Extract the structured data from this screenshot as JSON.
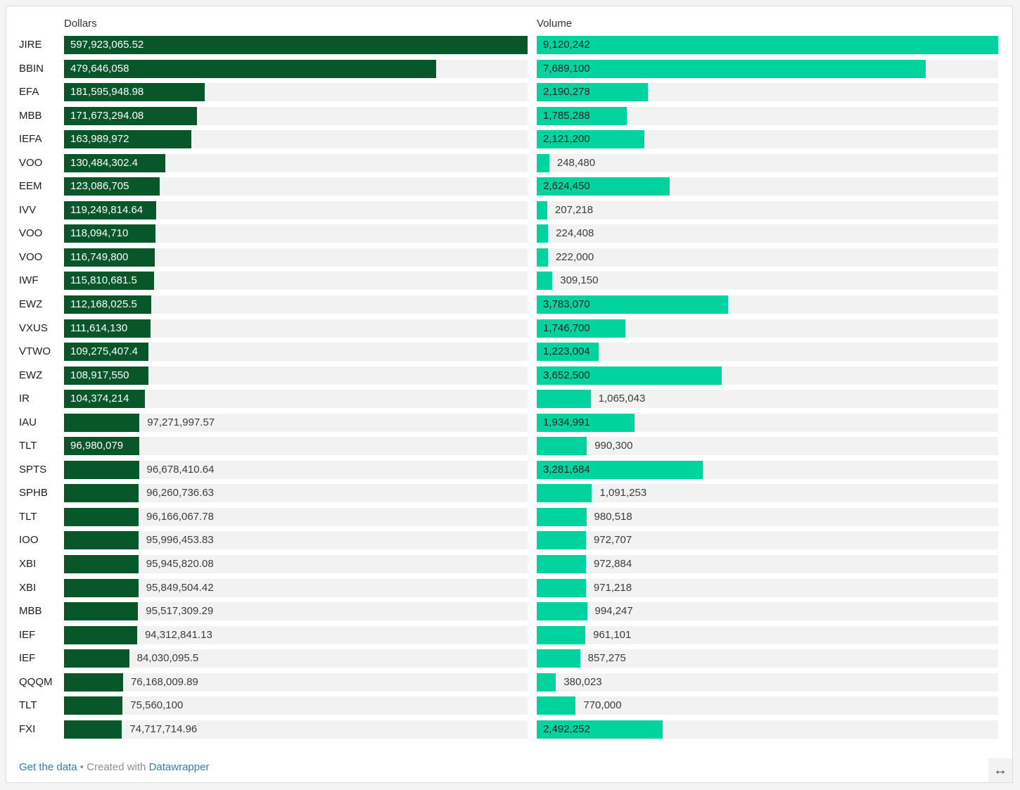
{
  "header": {
    "dollars": "Dollars",
    "volume": "Volume"
  },
  "colors": {
    "dollars_bar": "#08572b",
    "volume_bar": "#00d39e",
    "track": "#f2f2f2",
    "inside_label_on_dark": "#ffffff",
    "inside_label_on_light": "#262626",
    "outside_label": "#3c3c3c",
    "link_blue": "#2e7eb3",
    "footer_gray": "#8f8f8f"
  },
  "chart_data": {
    "type": "bar",
    "layout": "split-bar-columns",
    "columns": [
      "Dollars",
      "Volume"
    ],
    "dollars_axis_max": 597923065.52,
    "volume_axis_max": 9120242,
    "grid": false,
    "rows": [
      {
        "ticker": "JIRE",
        "dollars": 597923065.52,
        "dollars_label": "597,923,065.52",
        "dollars_inside": true,
        "volume": 9120242,
        "volume_label": "9,120,242",
        "volume_inside": true
      },
      {
        "ticker": "BBIN",
        "dollars": 479646058,
        "dollars_label": "479,646,058",
        "dollars_inside": true,
        "volume": 7689100,
        "volume_label": "7,689,100",
        "volume_inside": true
      },
      {
        "ticker": "EFA",
        "dollars": 181595948.98,
        "dollars_label": "181,595,948.98",
        "dollars_inside": true,
        "volume": 2190278,
        "volume_label": "2,190,278",
        "volume_inside": true
      },
      {
        "ticker": "MBB",
        "dollars": 171673294.08,
        "dollars_label": "171,673,294.08",
        "dollars_inside": true,
        "volume": 1785288,
        "volume_label": "1,785,288",
        "volume_inside": true
      },
      {
        "ticker": "IEFA",
        "dollars": 163989972,
        "dollars_label": "163,989,972",
        "dollars_inside": true,
        "volume": 2121200,
        "volume_label": "2,121,200",
        "volume_inside": true
      },
      {
        "ticker": "VOO",
        "dollars": 130484302.4,
        "dollars_label": "130,484,302.4",
        "dollars_inside": true,
        "volume": 248480,
        "volume_label": "248,480",
        "volume_inside": false
      },
      {
        "ticker": "EEM",
        "dollars": 123086705,
        "dollars_label": "123,086,705",
        "dollars_inside": true,
        "volume": 2624450,
        "volume_label": "2,624,450",
        "volume_inside": true
      },
      {
        "ticker": "IVV",
        "dollars": 119249814.64,
        "dollars_label": "119,249,814.64",
        "dollars_inside": true,
        "volume": 207218,
        "volume_label": "207,218",
        "volume_inside": false
      },
      {
        "ticker": "VOO",
        "dollars": 118094710,
        "dollars_label": "118,094,710",
        "dollars_inside": true,
        "volume": 224408,
        "volume_label": "224,408",
        "volume_inside": false
      },
      {
        "ticker": "VOO",
        "dollars": 116749800,
        "dollars_label": "116,749,800",
        "dollars_inside": true,
        "volume": 222000,
        "volume_label": "222,000",
        "volume_inside": false
      },
      {
        "ticker": "IWF",
        "dollars": 115810681.5,
        "dollars_label": "115,810,681.5",
        "dollars_inside": true,
        "volume": 309150,
        "volume_label": "309,150",
        "volume_inside": false
      },
      {
        "ticker": "EWZ",
        "dollars": 112168025.5,
        "dollars_label": "112,168,025.5",
        "dollars_inside": true,
        "volume": 3783070,
        "volume_label": "3,783,070",
        "volume_inside": true
      },
      {
        "ticker": "VXUS",
        "dollars": 111614130,
        "dollars_label": "111,614,130",
        "dollars_inside": true,
        "volume": 1746700,
        "volume_label": "1,746,700",
        "volume_inside": true
      },
      {
        "ticker": "VTWO",
        "dollars": 109275407.4,
        "dollars_label": "109,275,407.4",
        "dollars_inside": true,
        "volume": 1223004,
        "volume_label": "1,223,004",
        "volume_inside": true
      },
      {
        "ticker": "EWZ",
        "dollars": 108917550,
        "dollars_label": "108,917,550",
        "dollars_inside": true,
        "volume": 3652500,
        "volume_label": "3,652,500",
        "volume_inside": true
      },
      {
        "ticker": "IR",
        "dollars": 104374214,
        "dollars_label": "104,374,214",
        "dollars_inside": true,
        "volume": 1065043,
        "volume_label": "1,065,043",
        "volume_inside": false
      },
      {
        "ticker": "IAU",
        "dollars": 97271997.57,
        "dollars_label": "97,271,997.57",
        "dollars_inside": false,
        "volume": 1934991,
        "volume_label": "1,934,991",
        "volume_inside": true
      },
      {
        "ticker": "TLT",
        "dollars": 96980079,
        "dollars_label": "96,980,079",
        "dollars_inside": true,
        "volume": 990300,
        "volume_label": "990,300",
        "volume_inside": false
      },
      {
        "ticker": "SPTS",
        "dollars": 96678410.64,
        "dollars_label": "96,678,410.64",
        "dollars_inside": false,
        "volume": 3281684,
        "volume_label": "3,281,684",
        "volume_inside": true
      },
      {
        "ticker": "SPHB",
        "dollars": 96260736.63,
        "dollars_label": "96,260,736.63",
        "dollars_inside": false,
        "volume": 1091253,
        "volume_label": "1,091,253",
        "volume_inside": false
      },
      {
        "ticker": "TLT",
        "dollars": 96166067.78,
        "dollars_label": "96,166,067.78",
        "dollars_inside": false,
        "volume": 980518,
        "volume_label": "980,518",
        "volume_inside": false
      },
      {
        "ticker": "IOO",
        "dollars": 95996453.83,
        "dollars_label": "95,996,453.83",
        "dollars_inside": false,
        "volume": 972707,
        "volume_label": "972,707",
        "volume_inside": false
      },
      {
        "ticker": "XBI",
        "dollars": 95945820.08,
        "dollars_label": "95,945,820.08",
        "dollars_inside": false,
        "volume": 972884,
        "volume_label": "972,884",
        "volume_inside": false
      },
      {
        "ticker": "XBI",
        "dollars": 95849504.42,
        "dollars_label": "95,849,504.42",
        "dollars_inside": false,
        "volume": 971218,
        "volume_label": "971,218",
        "volume_inside": false
      },
      {
        "ticker": "MBB",
        "dollars": 95517309.29,
        "dollars_label": "95,517,309.29",
        "dollars_inside": false,
        "volume": 994247,
        "volume_label": "994,247",
        "volume_inside": false
      },
      {
        "ticker": "IEF",
        "dollars": 94312841.13,
        "dollars_label": "94,312,841.13",
        "dollars_inside": false,
        "volume": 961101,
        "volume_label": "961,101",
        "volume_inside": false
      },
      {
        "ticker": "IEF",
        "dollars": 84030095.5,
        "dollars_label": "84,030,095.5",
        "dollars_inside": false,
        "volume": 857275,
        "volume_label": "857,275",
        "volume_inside": false
      },
      {
        "ticker": "QQQM",
        "dollars": 76168009.89,
        "dollars_label": "76,168,009.89",
        "dollars_inside": false,
        "volume": 380023,
        "volume_label": "380,023",
        "volume_inside": false
      },
      {
        "ticker": "TLT",
        "dollars": 75560100,
        "dollars_label": "75,560,100",
        "dollars_inside": false,
        "volume": 770000,
        "volume_label": "770,000",
        "volume_inside": false
      },
      {
        "ticker": "FXI",
        "dollars": 74717714.96,
        "dollars_label": "74,717,714.96",
        "dollars_inside": false,
        "volume": 2492252,
        "volume_label": "2,492,252",
        "volume_inside": true
      }
    ]
  },
  "footer": {
    "get_the_data": "Get the data",
    "separator": "•",
    "created_with": "Created with",
    "datawrapper": "Datawrapper",
    "resize_icon_glyph": "↔"
  }
}
